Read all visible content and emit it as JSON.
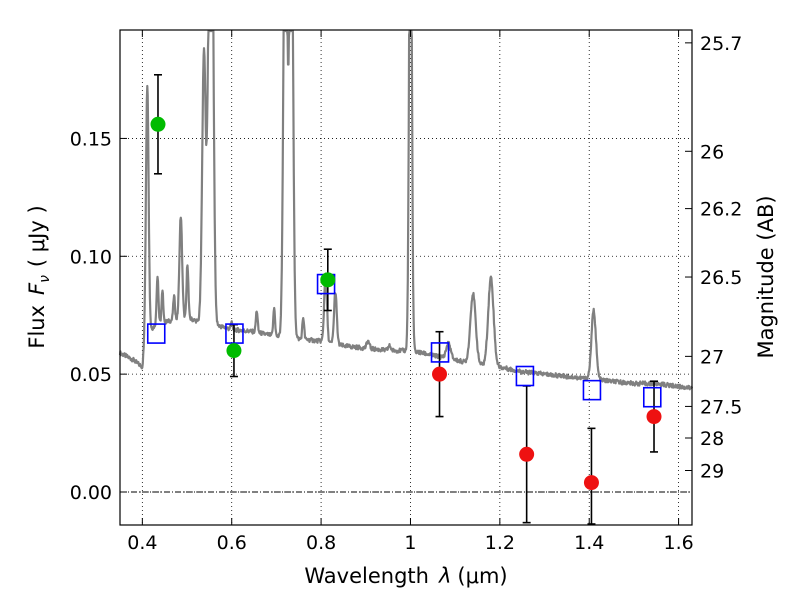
{
  "chart_data": {
    "type": "scatter",
    "xlabel": "Wavelength",
    "xlabel_symbol": "λ",
    "xlabel_unit": "(μm)",
    "ylabel": "Flux",
    "ylabel_symbol": "F",
    "ylabel_subscript": "ν",
    "ylabel_unit": "( μJy )",
    "y2label": "Magnitude (AB)",
    "xlim": [
      0.35,
      1.63
    ],
    "ylim": [
      -0.014,
      0.196
    ],
    "xticks": [
      0.4,
      0.6,
      0.8,
      1.0,
      1.2,
      1.4,
      1.6
    ],
    "xtick_labels": [
      "0.4",
      "0.6",
      "0.8",
      "1",
      "1.2",
      "1.4",
      "1.6"
    ],
    "yticks": [
      0.0,
      0.05,
      0.1,
      0.15
    ],
    "ytick_labels": [
      "0.00",
      "0.05",
      "0.10",
      "0.15"
    ],
    "y2ticks": [
      25.7,
      26,
      26.2,
      26.5,
      27,
      27.5,
      28,
      29
    ],
    "y2tick_labels": [
      "25.7",
      "26",
      "26.2",
      "26.5",
      "27",
      "27.5",
      "28",
      "29"
    ],
    "grid": true,
    "zero_line": true,
    "series": [
      {
        "style": "spectrum",
        "color": "#808080",
        "continuum": [
          [
            0.35,
            0.059
          ],
          [
            0.38,
            0.056
          ],
          [
            0.4,
            0.053
          ],
          [
            0.405,
            0.062
          ],
          [
            0.415,
            0.068
          ],
          [
            0.43,
            0.071
          ],
          [
            0.45,
            0.072
          ],
          [
            0.47,
            0.073
          ],
          [
            0.5,
            0.074
          ],
          [
            0.53,
            0.072
          ],
          [
            0.56,
            0.071
          ],
          [
            0.6,
            0.069
          ],
          [
            0.65,
            0.068
          ],
          [
            0.7,
            0.066
          ],
          [
            0.75,
            0.065
          ],
          [
            0.8,
            0.064
          ],
          [
            0.85,
            0.062
          ],
          [
            0.9,
            0.061
          ],
          [
            0.95,
            0.06
          ],
          [
            1.0,
            0.06
          ],
          [
            1.05,
            0.058
          ],
          [
            1.1,
            0.056
          ],
          [
            1.15,
            0.054
          ],
          [
            1.2,
            0.053
          ],
          [
            1.25,
            0.051
          ],
          [
            1.3,
            0.05
          ],
          [
            1.35,
            0.049
          ],
          [
            1.4,
            0.048
          ],
          [
            1.45,
            0.047
          ],
          [
            1.5,
            0.046
          ],
          [
            1.55,
            0.046
          ],
          [
            1.63,
            0.044
          ]
        ],
        "lines": [
          [
            0.411,
            0.173,
            0.003
          ],
          [
            0.434,
            0.092,
            0.002
          ],
          [
            0.445,
            0.085,
            0.002
          ],
          [
            0.471,
            0.083,
            0.002
          ],
          [
            0.486,
            0.117,
            0.003
          ],
          [
            0.501,
            0.097,
            0.002
          ],
          [
            0.538,
            0.188,
            0.004
          ],
          [
            0.548,
            0.155,
            0.003
          ],
          [
            0.555,
            0.28,
            0.004
          ],
          [
            0.6,
            0.072,
            0.002
          ],
          [
            0.656,
            0.077,
            0.002
          ],
          [
            0.695,
            0.078,
            0.002
          ],
          [
            0.72,
            0.28,
            0.004
          ],
          [
            0.733,
            0.28,
            0.004
          ],
          [
            0.76,
            0.074,
            0.002
          ],
          [
            0.81,
            0.093,
            0.003
          ],
          [
            0.832,
            0.085,
            0.003
          ],
          [
            0.905,
            0.064,
            0.003
          ],
          [
            0.953,
            0.062,
            0.003
          ],
          [
            1.0,
            0.28,
            0.003
          ],
          [
            1.085,
            0.063,
            0.005
          ],
          [
            1.14,
            0.084,
            0.006
          ],
          [
            1.18,
            0.091,
            0.006
          ],
          [
            1.41,
            0.077,
            0.005
          ]
        ]
      },
      {
        "style": "model-band",
        "marker": "square",
        "color": "#0000ff",
        "x": [
          0.43,
          0.605,
          0.81,
          1.065,
          1.255,
          1.405,
          1.54
        ],
        "y": [
          0.067,
          0.067,
          0.088,
          0.059,
          0.049,
          0.043,
          0.04
        ]
      },
      {
        "style": "observed-optical",
        "marker": "circle",
        "color": "#00bb00",
        "x": [
          0.435,
          0.605,
          0.815
        ],
        "y": [
          0.156,
          0.06,
          0.09
        ],
        "yerr": [
          0.021,
          0.011,
          0.013
        ]
      },
      {
        "style": "observed-nir",
        "marker": "circle",
        "color": "#ee1111",
        "x": [
          1.065,
          1.26,
          1.405,
          1.545
        ],
        "y": [
          0.05,
          0.016,
          0.004,
          0.032
        ],
        "yerr": [
          0.018,
          0.029,
          0.023,
          0.015
        ]
      }
    ]
  }
}
